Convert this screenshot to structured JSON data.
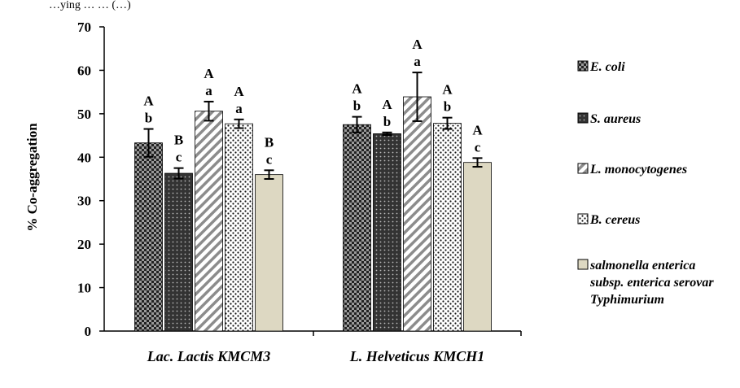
{
  "chart_data": {
    "type": "bar",
    "top_caption": "…ying … … (…)",
    "ylabel": "% Co-aggregation",
    "xlabel": "",
    "ylim": [
      0,
      70
    ],
    "yticks": [
      0,
      10,
      20,
      30,
      40,
      50,
      60,
      70
    ],
    "grid": false,
    "legend_position": "right",
    "categories": [
      "Lac. Lactis KMCM3",
      "L. Helveticus KMCH1"
    ],
    "series": [
      {
        "name": "E. coli",
        "pattern": "checker",
        "color": "#2b2b2b",
        "values": [
          43.3,
          47.5
        ],
        "errors": [
          3.2,
          1.8
        ],
        "letters": [
          [
            "A",
            "b"
          ],
          [
            "A",
            "b"
          ]
        ]
      },
      {
        "name": "S. aureus",
        "pattern": "dots-dark",
        "color": "#3a3a3a",
        "values": [
          36.3,
          45.4
        ],
        "errors": [
          1.2,
          0.3
        ],
        "letters": [
          [
            "B",
            "c"
          ],
          [
            "A",
            "b"
          ]
        ]
      },
      {
        "name": "L. monocytogenes",
        "pattern": "diagonal",
        "color": "#8a8a8a",
        "values": [
          50.6,
          53.9
        ],
        "errors": [
          2.2,
          5.6
        ],
        "letters": [
          [
            "A",
            "a"
          ],
          [
            "A",
            "a"
          ]
        ]
      },
      {
        "name": "B. cereus",
        "pattern": "dots-light",
        "color": "#1a1a1a",
        "values": [
          47.7,
          47.8
        ],
        "errors": [
          1.0,
          1.3
        ],
        "letters": [
          [
            "A",
            "a"
          ],
          [
            "A",
            "b"
          ]
        ]
      },
      {
        "name": "salmonella enterica subsp. enterica serovar Typhimurium",
        "pattern": "solid",
        "color": "#ddd8c2",
        "legend_lines": [
          "salmonella enterica",
          "subsp. enterica serovar",
          "Typhimurium"
        ],
        "values": [
          36.0,
          38.8
        ],
        "errors": [
          1.0,
          1.0
        ],
        "letters": [
          [
            "B",
            "c"
          ],
          [
            "A",
            "c"
          ]
        ]
      }
    ]
  }
}
